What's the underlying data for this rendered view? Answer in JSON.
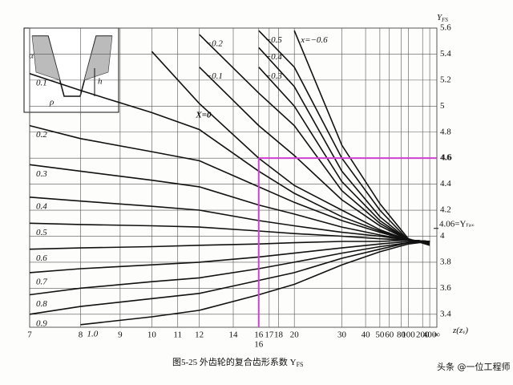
{
  "chart_data": {
    "type": "line",
    "title": "图5-25  外齿轮的复合齿形系数 Y",
    "title_sub": "FS",
    "y_label": "Y",
    "y_label_sub": "FS",
    "x_label": "z(z",
    "x_label_sub": "v",
    "x_label_end": ")",
    "xscale": "reciprocal",
    "x": [
      7,
      8,
      10,
      12,
      16,
      20,
      30,
      50,
      100,
      400
    ],
    "xlim": [
      7,
      null
    ],
    "xticks": [
      7,
      8,
      9,
      10,
      11,
      12,
      14,
      16,
      17,
      18,
      20,
      30,
      40,
      50,
      60,
      80,
      100,
      200,
      400,
      {
        "value": null,
        "label": "∞"
      }
    ],
    "ylim": [
      3.3,
      5.6
    ],
    "yticks": [
      3.4,
      3.6,
      3.8,
      4.0,
      4.2,
      4.4,
      4.6,
      4.8,
      5.0,
      5.2,
      5.4,
      5.6
    ],
    "grid": true,
    "reference_tick": {
      "value": 4.06,
      "label": "4.06=Y"
    },
    "reference_tick_sub": "Fa∞",
    "series": [
      {
        "name": "x=−0.6",
        "color": "#111111",
        "values": [
          null,
          null,
          null,
          null,
          null,
          5.58,
          4.7,
          4.25,
          3.98,
          3.93
        ]
      },
      {
        "name": "−0.5",
        "color": "#111111",
        "values": [
          null,
          null,
          null,
          null,
          5.58,
          5.3,
          4.6,
          4.2,
          3.97,
          3.94
        ]
      },
      {
        "name": "−0.4",
        "color": "#111111",
        "values": [
          null,
          null,
          null,
          null,
          5.45,
          5.15,
          4.5,
          4.15,
          3.97,
          3.95
        ]
      },
      {
        "name": "−0.3",
        "color": "#111111",
        "values": [
          null,
          null,
          null,
          null,
          5.3,
          5.0,
          4.42,
          4.12,
          3.97,
          3.95
        ]
      },
      {
        "name": "−0.2",
        "color": "#111111",
        "values": [
          null,
          null,
          null,
          5.55,
          5.1,
          4.85,
          4.35,
          4.1,
          3.97,
          3.95
        ]
      },
      {
        "name": "−0.1",
        "color": "#111111",
        "values": [
          null,
          null,
          null,
          5.3,
          4.85,
          4.62,
          4.28,
          4.08,
          3.97,
          3.96
        ]
      },
      {
        "name": "X=0",
        "color": "#d42020",
        "values": [
          null,
          null,
          5.42,
          5.02,
          4.6,
          4.39,
          4.2,
          4.05,
          3.97,
          3.96
        ]
      },
      {
        "name": "0.1",
        "color": "#111111",
        "values": [
          5.25,
          5.12,
          4.95,
          4.82,
          4.5,
          4.33,
          4.15,
          4.04,
          3.97,
          3.96
        ]
      },
      {
        "name": "0.2",
        "color": "#111111",
        "values": [
          4.85,
          4.75,
          4.65,
          4.58,
          4.38,
          4.26,
          4.12,
          4.03,
          3.97,
          3.96
        ]
      },
      {
        "name": "0.3",
        "color": "#111111",
        "values": [
          4.55,
          4.5,
          4.43,
          4.38,
          4.24,
          4.17,
          4.07,
          4.01,
          3.97,
          3.96
        ]
      },
      {
        "name": "0.4",
        "color": "#111111",
        "values": [
          4.3,
          4.27,
          4.23,
          4.2,
          4.12,
          4.08,
          4.03,
          4.0,
          3.97,
          3.96
        ]
      },
      {
        "name": "0.5",
        "color": "#111111",
        "values": [
          4.1,
          4.09,
          4.08,
          4.07,
          4.04,
          4.02,
          4.0,
          3.98,
          3.97,
          3.96
        ]
      },
      {
        "name": "0.6",
        "color": "#111111",
        "values": [
          3.9,
          3.91,
          3.92,
          3.93,
          3.94,
          3.95,
          3.96,
          3.96,
          3.97,
          3.96
        ]
      },
      {
        "name": "0.7",
        "color": "#111111",
        "values": [
          3.72,
          3.75,
          3.78,
          3.8,
          3.84,
          3.87,
          3.91,
          3.94,
          3.96,
          3.96
        ]
      },
      {
        "name": "0.8",
        "color": "#111111",
        "values": [
          3.55,
          3.6,
          3.65,
          3.68,
          3.75,
          3.8,
          3.87,
          3.92,
          3.95,
          3.96
        ]
      },
      {
        "name": "0.9",
        "color": "#111111",
        "values": [
          3.4,
          3.46,
          3.52,
          3.56,
          3.66,
          3.72,
          3.83,
          3.9,
          3.95,
          3.96
        ]
      },
      {
        "name": "1.0",
        "color": "#111111",
        "values": [
          null,
          3.32,
          3.38,
          3.43,
          3.55,
          3.63,
          3.78,
          3.88,
          3.94,
          3.96
        ]
      }
    ],
    "marker": {
      "x": 16,
      "y": 4.6,
      "x_label": "16",
      "y_label": "4.6",
      "color": "#d040d0"
    },
    "inset_labels": [
      "α",
      "ρ",
      "h"
    ],
    "watermark": "头条 @一位工程师"
  }
}
